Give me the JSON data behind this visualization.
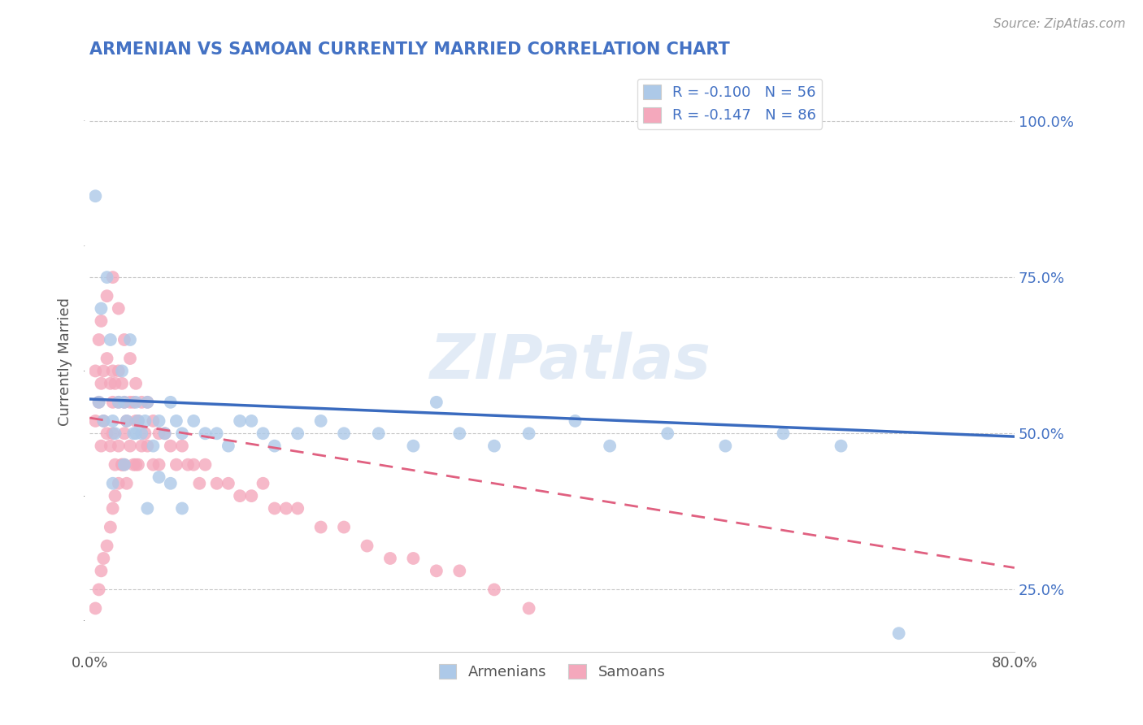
{
  "title": "ARMENIAN VS SAMOAN CURRENTLY MARRIED CORRELATION CHART",
  "source": "Source: ZipAtlas.com",
  "ylabel": "Currently Married",
  "xlim": [
    0.0,
    0.8
  ],
  "ylim": [
    0.15,
    1.08
  ],
  "yticks_right": [
    0.25,
    0.5,
    0.75,
    1.0
  ],
  "yticklabels_right": [
    "25.0%",
    "50.0%",
    "75.0%",
    "100.0%"
  ],
  "armenian_R": -0.1,
  "armenian_N": 56,
  "samoan_R": -0.147,
  "samoan_N": 86,
  "armenian_color": "#adc9e8",
  "samoan_color": "#f4a8bc",
  "armenian_line_color": "#3a6bbf",
  "samoan_line_color": "#e06080",
  "watermark": "ZIPatlas",
  "background_color": "#ffffff",
  "grid_color": "#c8c8c8",
  "title_color": "#4472c4",
  "arm_line_x": [
    0.0,
    0.8
  ],
  "arm_line_y": [
    0.555,
    0.495
  ],
  "sam_line_x": [
    0.0,
    0.8
  ],
  "sam_line_y": [
    0.525,
    0.285
  ],
  "armenian_x": [
    0.005,
    0.008,
    0.01,
    0.012,
    0.015,
    0.018,
    0.02,
    0.022,
    0.025,
    0.028,
    0.03,
    0.032,
    0.035,
    0.038,
    0.04,
    0.042,
    0.045,
    0.048,
    0.05,
    0.055,
    0.06,
    0.065,
    0.07,
    0.075,
    0.08,
    0.09,
    0.1,
    0.11,
    0.12,
    0.13,
    0.14,
    0.15,
    0.16,
    0.18,
    0.2,
    0.22,
    0.25,
    0.28,
    0.3,
    0.32,
    0.35,
    0.38,
    0.42,
    0.45,
    0.5,
    0.55,
    0.6,
    0.65,
    0.02,
    0.03,
    0.04,
    0.05,
    0.06,
    0.07,
    0.08,
    0.7
  ],
  "armenian_y": [
    0.88,
    0.55,
    0.7,
    0.52,
    0.75,
    0.65,
    0.52,
    0.5,
    0.55,
    0.6,
    0.55,
    0.52,
    0.65,
    0.5,
    0.55,
    0.52,
    0.5,
    0.52,
    0.55,
    0.48,
    0.52,
    0.5,
    0.55,
    0.52,
    0.5,
    0.52,
    0.5,
    0.5,
    0.48,
    0.52,
    0.52,
    0.5,
    0.48,
    0.5,
    0.52,
    0.5,
    0.5,
    0.48,
    0.55,
    0.5,
    0.48,
    0.5,
    0.52,
    0.48,
    0.5,
    0.48,
    0.5,
    0.48,
    0.42,
    0.45,
    0.5,
    0.38,
    0.43,
    0.42,
    0.38,
    0.18
  ],
  "samoan_x": [
    0.005,
    0.005,
    0.008,
    0.008,
    0.01,
    0.01,
    0.012,
    0.012,
    0.015,
    0.015,
    0.018,
    0.018,
    0.02,
    0.02,
    0.02,
    0.022,
    0.022,
    0.025,
    0.025,
    0.025,
    0.028,
    0.028,
    0.03,
    0.03,
    0.03,
    0.032,
    0.032,
    0.035,
    0.035,
    0.038,
    0.038,
    0.04,
    0.04,
    0.04,
    0.042,
    0.042,
    0.045,
    0.045,
    0.048,
    0.05,
    0.05,
    0.055,
    0.055,
    0.06,
    0.06,
    0.065,
    0.07,
    0.075,
    0.08,
    0.085,
    0.09,
    0.095,
    0.1,
    0.11,
    0.12,
    0.13,
    0.14,
    0.15,
    0.16,
    0.17,
    0.18,
    0.2,
    0.22,
    0.24,
    0.26,
    0.28,
    0.3,
    0.32,
    0.35,
    0.38,
    0.01,
    0.015,
    0.02,
    0.025,
    0.03,
    0.035,
    0.005,
    0.008,
    0.01,
    0.012,
    0.015,
    0.018,
    0.02,
    0.022,
    0.025,
    0.028
  ],
  "samoan_y": [
    0.6,
    0.52,
    0.65,
    0.55,
    0.58,
    0.48,
    0.6,
    0.52,
    0.62,
    0.5,
    0.58,
    0.48,
    0.6,
    0.55,
    0.5,
    0.58,
    0.45,
    0.6,
    0.55,
    0.48,
    0.58,
    0.45,
    0.55,
    0.5,
    0.45,
    0.52,
    0.42,
    0.55,
    0.48,
    0.55,
    0.45,
    0.58,
    0.52,
    0.45,
    0.52,
    0.45,
    0.55,
    0.48,
    0.5,
    0.55,
    0.48,
    0.52,
    0.45,
    0.5,
    0.45,
    0.5,
    0.48,
    0.45,
    0.48,
    0.45,
    0.45,
    0.42,
    0.45,
    0.42,
    0.42,
    0.4,
    0.4,
    0.42,
    0.38,
    0.38,
    0.38,
    0.35,
    0.35,
    0.32,
    0.3,
    0.3,
    0.28,
    0.28,
    0.25,
    0.22,
    0.68,
    0.72,
    0.75,
    0.7,
    0.65,
    0.62,
    0.22,
    0.25,
    0.28,
    0.3,
    0.32,
    0.35,
    0.38,
    0.4,
    0.42,
    0.45
  ]
}
